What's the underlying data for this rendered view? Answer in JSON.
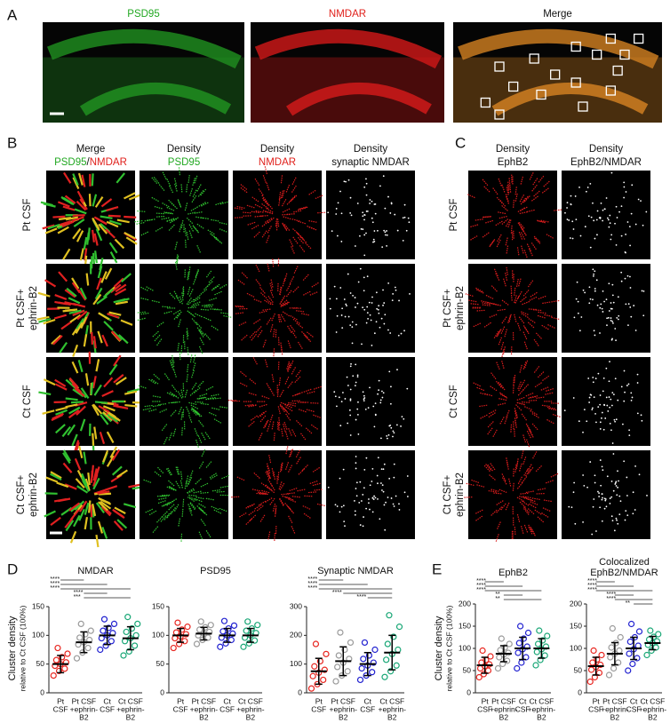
{
  "panel_A": {
    "letter": "A",
    "images": [
      {
        "label": "PSD95",
        "color": "#22a822"
      },
      {
        "label": "NMDAR",
        "color": "#e0201b"
      },
      {
        "label": "Merge",
        "color": "#111111"
      }
    ]
  },
  "panel_B": {
    "letter": "B",
    "columns": [
      [
        [
          {
            "text": "Merge",
            "color": "#111111"
          }
        ],
        [
          {
            "text": "PSD95",
            "color": "#22a822"
          },
          {
            "text": "/",
            "color": "#111111"
          },
          {
            "text": "NMDAR",
            "color": "#e0201b"
          }
        ]
      ],
      [
        [
          {
            "text": "Density",
            "color": "#111111"
          }
        ],
        [
          {
            "text": "PSD95",
            "color": "#22a822"
          }
        ]
      ],
      [
        [
          {
            "text": "Density",
            "color": "#111111"
          }
        ],
        [
          {
            "text": "NMDAR",
            "color": "#e0201b"
          }
        ]
      ],
      [
        [
          {
            "text": "Density",
            "color": "#111111"
          }
        ],
        [
          {
            "text": "synaptic NMDAR",
            "color": "#111111"
          }
        ]
      ]
    ],
    "rows": [
      [
        "Pt  CSF"
      ],
      [
        "Pt CSF+",
        "ephrin-B2"
      ],
      [
        "Ct CSF"
      ],
      [
        "Ct CSF+",
        "ephrin-B2"
      ]
    ]
  },
  "panel_C": {
    "letter": "C",
    "columns": [
      [
        [
          {
            "text": "Density",
            "color": "#111111"
          }
        ],
        [
          {
            "text": "EphB2",
            "color": "#111111"
          }
        ]
      ],
      [
        [
          {
            "text": "Density",
            "color": "#111111"
          }
        ],
        [
          {
            "text": "EphB2/NMDAR",
            "color": "#111111"
          }
        ]
      ]
    ],
    "rows": [
      [
        "Pt CSF"
      ],
      [
        "Pt CSF+",
        "ephrin-B2"
      ],
      [
        "Ct CSF"
      ],
      [
        "Ct CSF+",
        "ephrin-B2"
      ]
    ]
  },
  "panel_D": {
    "letter": "D",
    "y_label": [
      "Cluster density",
      "relative to Ct CSF (100%)"
    ],
    "charts": [
      {
        "type": "dot_plot",
        "title": [
          "NMDAR"
        ],
        "ylim": [
          0,
          150
        ],
        "yticks": [
          0,
          50,
          100,
          150
        ],
        "categories": [
          [
            "Pt",
            "CSF"
          ],
          [
            "Pt CSF",
            "+ephrin-",
            "B2"
          ],
          [
            "Ct",
            "CSF"
          ],
          [
            "Ct CSF",
            "+ephrin-",
            "B2"
          ]
        ],
        "colors": [
          "#e8251f",
          "#9a9a9a",
          "#2020d0",
          "#19a776"
        ],
        "groups": [
          {
            "mean": 50,
            "sd": 15,
            "values": [
              30,
              38,
              42,
              47,
              50,
              53,
              57,
              62,
              68,
              78
            ]
          },
          {
            "mean": 88,
            "sd": 18,
            "values": [
              60,
              70,
              78,
              84,
              88,
              92,
              96,
              102,
              108,
              120
            ]
          },
          {
            "mean": 100,
            "sd": 16,
            "values": [
              75,
              82,
              90,
              95,
              100,
              104,
              108,
              113,
              120,
              128
            ]
          },
          {
            "mean": 95,
            "sd": 20,
            "values": [
              65,
              72,
              82,
              90,
              95,
              100,
              106,
              112,
              120,
              132
            ]
          }
        ],
        "significance": [
          {
            "label": "****",
            "from": 0,
            "to": 1
          },
          {
            "label": "****",
            "from": 0,
            "to": 2
          },
          {
            "label": "****",
            "from": 0,
            "to": 3
          },
          {
            "label": "****",
            "from": 1,
            "to": 2
          },
          {
            "label": "***",
            "from": 1,
            "to": 3
          }
        ]
      },
      {
        "type": "dot_plot",
        "title": [
          "PSD95"
        ],
        "ylim": [
          0,
          150
        ],
        "yticks": [
          0,
          50,
          100,
          150
        ],
        "categories": [
          [
            "Pt",
            "CSF"
          ],
          [
            "Pt CSF",
            "+ephrin-",
            "B2"
          ],
          [
            "Ct",
            "CSF"
          ],
          [
            "Ct CSF",
            "+ephrin-",
            "B2"
          ]
        ],
        "colors": [
          "#e8251f",
          "#9a9a9a",
          "#2020d0",
          "#19a776"
        ],
        "groups": [
          {
            "mean": 100,
            "sd": 12,
            "values": [
              78,
              85,
              90,
              95,
              98,
              102,
              105,
              110,
              115,
              122
            ]
          },
          {
            "mean": 103,
            "sd": 11,
            "values": [
              85,
              92,
              96,
              100,
              103,
              106,
              110,
              114,
              118,
              124
            ]
          },
          {
            "mean": 100,
            "sd": 12,
            "values": [
              80,
              86,
              92,
              96,
              100,
              103,
              107,
              112,
              117,
              125
            ]
          },
          {
            "mean": 100,
            "sd": 12,
            "values": [
              80,
              86,
              91,
              96,
              100,
              104,
              108,
              112,
              118,
              124
            ]
          }
        ],
        "significance": []
      },
      {
        "type": "dot_plot",
        "title": [
          "Synaptic NMDAR"
        ],
        "ylim": [
          0,
          300
        ],
        "yticks": [
          0,
          100,
          200,
          300
        ],
        "categories": [
          [
            "Pt",
            "CSF"
          ],
          [
            "Pt CSF",
            "+ephrin-",
            "B2"
          ],
          [
            "Ct",
            "CSF"
          ],
          [
            "Ct CSF",
            "+ephrin-",
            "B2"
          ]
        ],
        "colors": [
          "#e8251f",
          "#9a9a9a",
          "#2020d0",
          "#19a776"
        ],
        "groups": [
          {
            "mean": 75,
            "sd": 45,
            "values": [
              15,
              30,
              45,
              58,
              70,
              80,
              92,
              110,
              135,
              170
            ]
          },
          {
            "mean": 110,
            "sd": 50,
            "values": [
              40,
              60,
              75,
              90,
              105,
              118,
              130,
              150,
              175,
              210
            ]
          },
          {
            "mean": 100,
            "sd": 40,
            "values": [
              45,
              60,
              72,
              85,
              95,
              105,
              118,
              130,
              150,
              175
            ]
          },
          {
            "mean": 140,
            "sd": 60,
            "values": [
              55,
              75,
              95,
              115,
              135,
              150,
              170,
              195,
              230,
              270
            ]
          }
        ],
        "significance": [
          {
            "label": "****",
            "from": 0,
            "to": 1
          },
          {
            "label": "****",
            "from": 0,
            "to": 2
          },
          {
            "label": "****",
            "from": 0,
            "to": 3
          },
          {
            "label": "****",
            "from": 1,
            "to": 3
          },
          {
            "label": "****",
            "from": 2,
            "to": 3
          }
        ]
      }
    ]
  },
  "panel_E": {
    "letter": "E",
    "y_label": [
      "Cluster density",
      "relative to Ct CSF (100%)"
    ],
    "charts": [
      {
        "type": "dot_plot",
        "title": [
          "EphB2"
        ],
        "ylim": [
          0,
          200
        ],
        "yticks": [
          0,
          50,
          100,
          150,
          200
        ],
        "categories": [
          [
            "Pt",
            "CSF"
          ],
          [
            "Pt CSF",
            "+ephrin-",
            "B2"
          ],
          [
            "Ct",
            "CSF"
          ],
          [
            "Ct CSF",
            "+ephrin-",
            "B2"
          ]
        ],
        "colors": [
          "#e8251f",
          "#9a9a9a",
          "#2020d0",
          "#19a776"
        ],
        "groups": [
          {
            "mean": 62,
            "sd": 18,
            "values": [
              35,
              42,
              50,
              55,
              60,
              64,
              68,
              74,
              82,
              95
            ]
          },
          {
            "mean": 88,
            "sd": 18,
            "values": [
              55,
              65,
              72,
              80,
              86,
              90,
              96,
              102,
              110,
              122
            ]
          },
          {
            "mean": 100,
            "sd": 25,
            "values": [
              55,
              68,
              80,
              90,
              98,
              104,
              112,
              122,
              135,
              150
            ]
          },
          {
            "mean": 100,
            "sd": 22,
            "values": [
              62,
              74,
              84,
              92,
              98,
              104,
              110,
              118,
              128,
              140
            ]
          }
        ],
        "significance": [
          {
            "label": "****",
            "from": 0,
            "to": 1
          },
          {
            "label": "****",
            "from": 0,
            "to": 2
          },
          {
            "label": "****",
            "from": 0,
            "to": 3
          },
          {
            "label": "**",
            "from": 1,
            "to": 2
          },
          {
            "label": "**",
            "from": 1,
            "to": 3
          }
        ]
      },
      {
        "type": "dot_plot",
        "title": [
          "Colocalized",
          "EphB2/NMDAR"
        ],
        "ylim": [
          0,
          200
        ],
        "yticks": [
          0,
          50,
          100,
          150,
          200
        ],
        "categories": [
          [
            "Pt",
            "CSF"
          ],
          [
            "Pt CSF",
            "+ephrin-",
            "B2"
          ],
          [
            "Ct",
            "CSF"
          ],
          [
            "Ct CSF",
            "+ephrin-",
            "B2"
          ]
        ],
        "colors": [
          "#e8251f",
          "#9a9a9a",
          "#2020d0",
          "#19a776"
        ],
        "groups": [
          {
            "mean": 60,
            "sd": 20,
            "values": [
              25,
              35,
              45,
              52,
              58,
              63,
              68,
              75,
              85,
              95
            ]
          },
          {
            "mean": 88,
            "sd": 25,
            "values": [
              40,
              55,
              68,
              80,
              88,
              95,
              102,
              112,
              125,
              145
            ]
          },
          {
            "mean": 100,
            "sd": 25,
            "values": [
              50,
              65,
              78,
              88,
              98,
              106,
              115,
              125,
              138,
              155
            ]
          },
          {
            "mean": 112,
            "sd": 15,
            "values": [
              85,
              95,
              102,
              108,
              112,
              116,
              120,
              126,
              132,
              140
            ]
          }
        ],
        "significance": [
          {
            "label": "****",
            "from": 0,
            "to": 1
          },
          {
            "label": "****",
            "from": 0,
            "to": 2
          },
          {
            "label": "****",
            "from": 0,
            "to": 3
          },
          {
            "label": "****",
            "from": 1,
            "to": 2
          },
          {
            "label": "****",
            "from": 1,
            "to": 3
          },
          {
            "label": "**",
            "from": 2,
            "to": 3
          }
        ]
      }
    ]
  }
}
